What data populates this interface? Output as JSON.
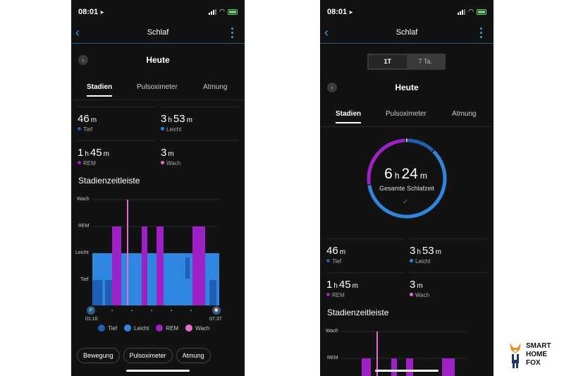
{
  "status_bar": {
    "time": "08:01"
  },
  "nav": {
    "title": "Schlaf"
  },
  "day": {
    "title": "Heute"
  },
  "tabs": [
    "Stadien",
    "Pulsoximeter",
    "Atmung"
  ],
  "stats": [
    {
      "value": "46",
      "unit": "m",
      "label": "Tief",
      "color": "#1e5fb4"
    },
    {
      "value1": "3",
      "unit1": "h",
      "value2": "53",
      "unit2": "m",
      "label": "Leicht",
      "color": "#2f86e0"
    },
    {
      "value1": "1",
      "unit1": "h",
      "value2": "45",
      "unit2": "m",
      "label": "REM",
      "color": "#a020c8"
    },
    {
      "value": "3",
      "unit": "m",
      "label": "Wach",
      "color": "#e86cc8"
    }
  ],
  "timeline": {
    "title": "Stadienzeitleiste",
    "levels": [
      "Wach",
      "REM",
      "Leicht",
      "Tief"
    ],
    "start_time": "01:10",
    "end_time": "07:37",
    "colors": {
      "tief": "#1e5fb4",
      "leicht": "#2f86e0",
      "rem": "#a020c8",
      "wach": "#e86cc8"
    }
  },
  "legend": [
    "Tief",
    "Leicht",
    "REM",
    "Wach"
  ],
  "bottom_buttons": [
    "Bewegung",
    "Pulsoximeter",
    "Atmung"
  ],
  "range_selector": {
    "options": [
      "1T",
      "7 Ta."
    ],
    "selected": "1T"
  },
  "summary": {
    "hours": "6",
    "hours_unit": "h",
    "minutes": "24",
    "minutes_unit": "m",
    "label": "Gesamte Schlafzeit"
  },
  "brand": {
    "line1": "SMART",
    "line2": "HOME",
    "line3": "FOX"
  }
}
